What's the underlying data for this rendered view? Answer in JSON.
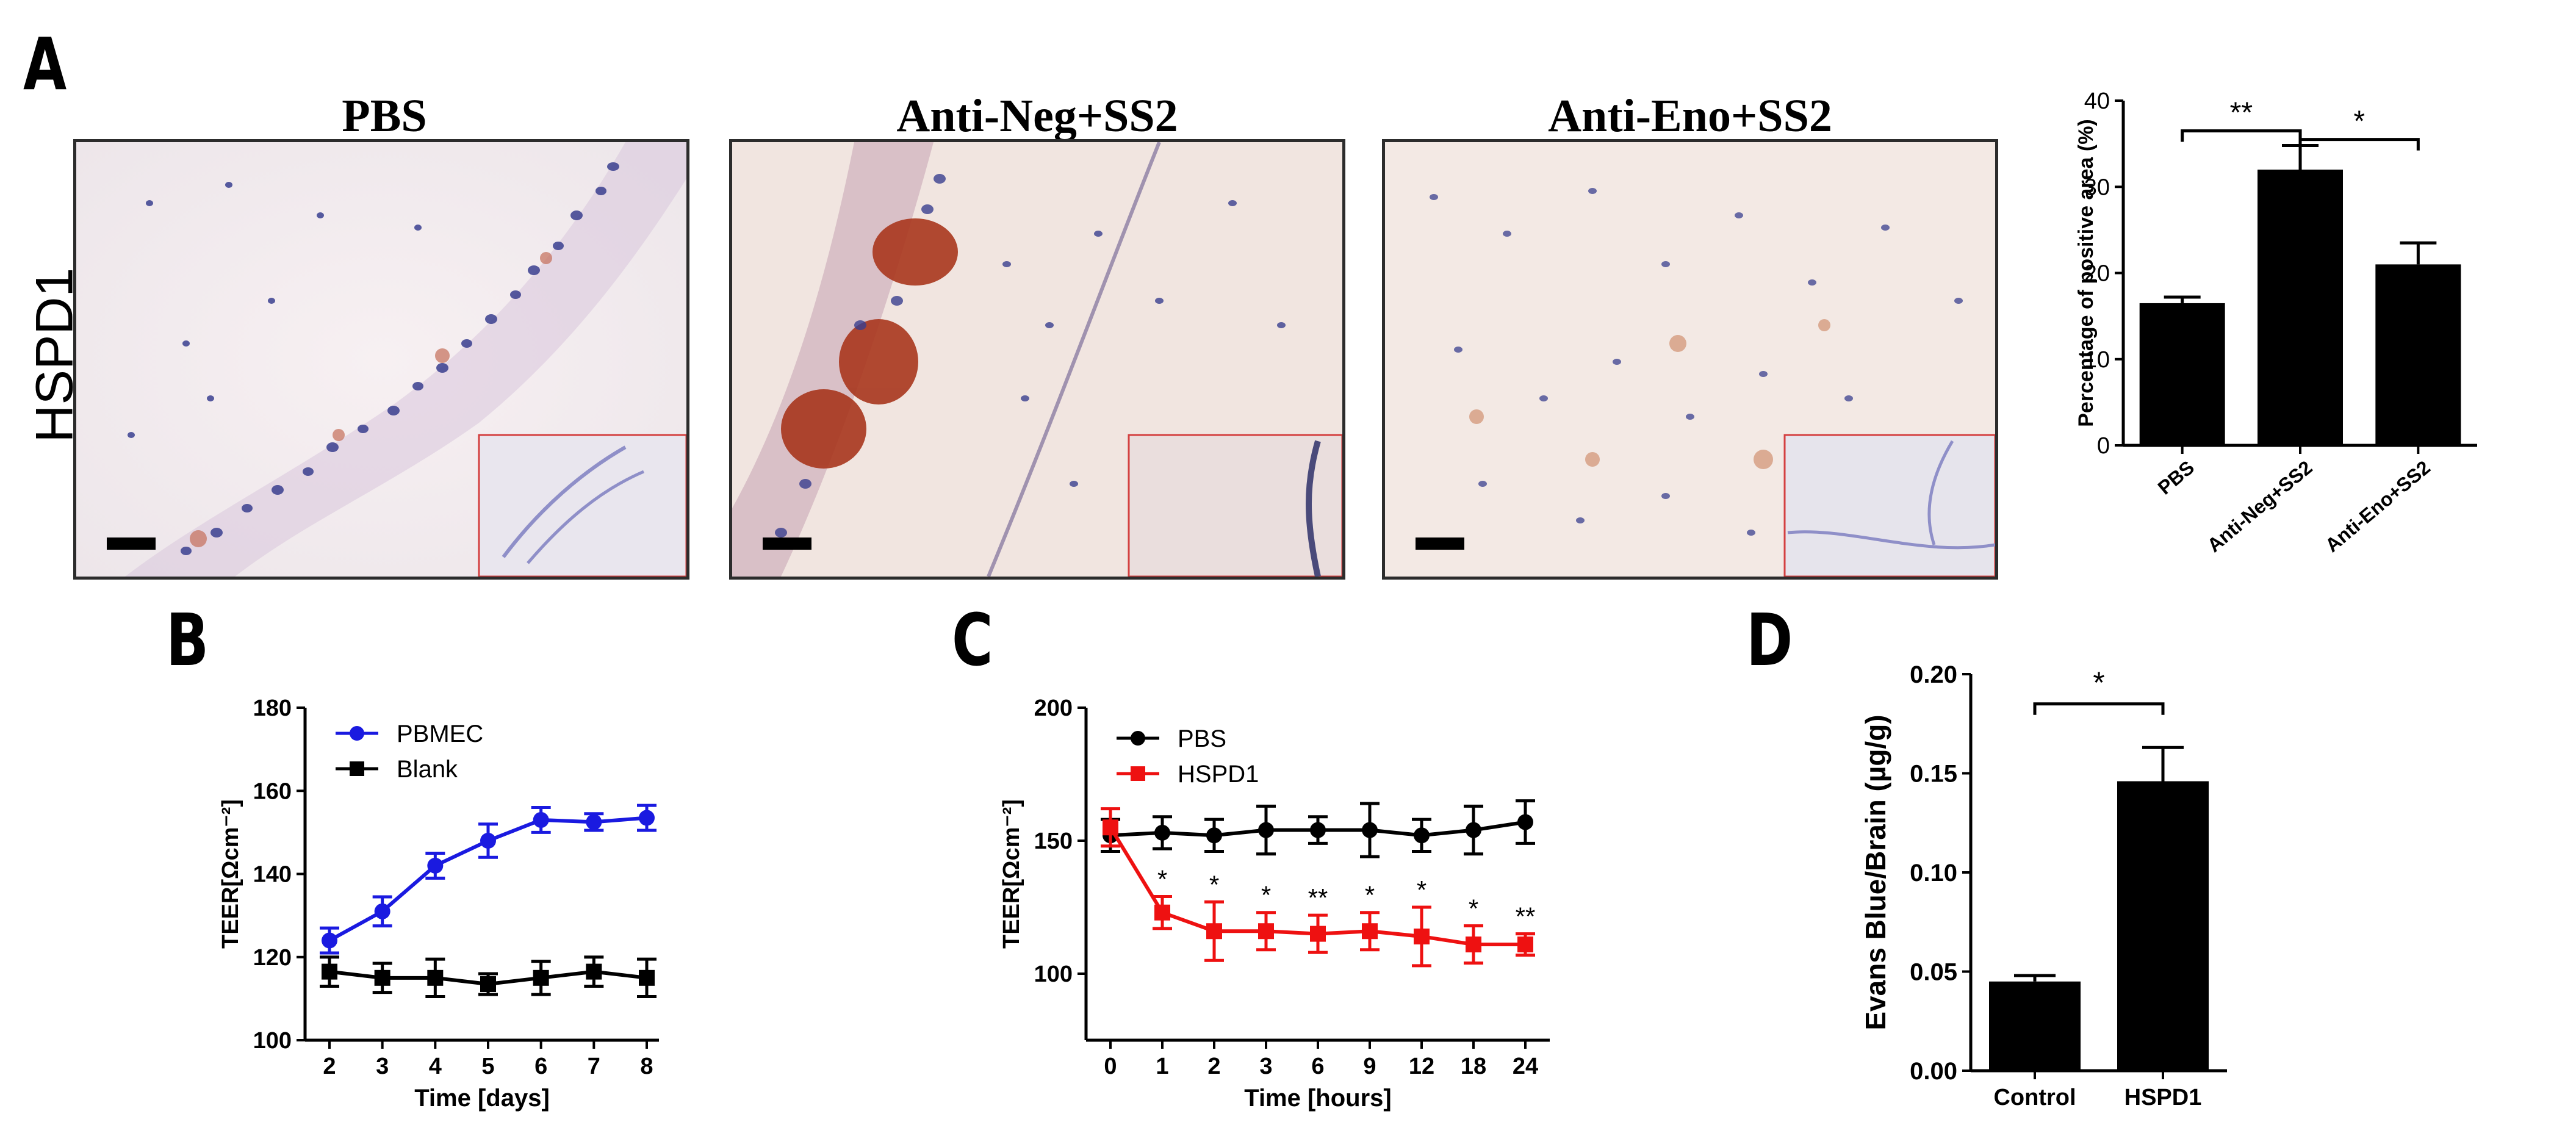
{
  "panels": {
    "A": "A",
    "B": "B",
    "C": "C",
    "D": "D",
    "row_label": "HSPD1",
    "micrographs": [
      {
        "title": "PBS"
      },
      {
        "title": "Anti-Neg+SS2"
      },
      {
        "title": "Anti-Eno+SS2"
      }
    ]
  },
  "colors": {
    "pbmec": "#1a1ae0",
    "blank": "#000000",
    "pbs": "#000000",
    "hspd1": "#ee1111",
    "bar": "#000000"
  },
  "chart_data": [
    {
      "id": "A",
      "type": "bar",
      "categories": [
        "PBS",
        "Anti-Neg+SS2",
        "Anti-Eno+SS2"
      ],
      "values": [
        16.5,
        32,
        21
      ],
      "errors": [
        0.7,
        2.8,
        2.5
      ],
      "ylabel": "Percentage of positive area (%)",
      "ylim": [
        0,
        40
      ],
      "yticks": [
        "0",
        "10",
        "20",
        "30",
        "40"
      ],
      "annotations": [
        {
          "from": 0,
          "to": 1,
          "label": "**"
        },
        {
          "from": 1,
          "to": 2,
          "label": "*"
        }
      ]
    },
    {
      "id": "B",
      "type": "line",
      "xlabel": "Time [days]",
      "ylabel": "TEER[Ωcm⁻²]",
      "x": [
        2,
        3,
        4,
        5,
        6,
        7,
        8
      ],
      "xticks": [
        "2",
        "3",
        "4",
        "5",
        "6",
        "7",
        "8"
      ],
      "ylim": [
        100,
        180
      ],
      "yticks": [
        "100",
        "120",
        "140",
        "160",
        "180"
      ],
      "series": [
        {
          "name": "PBMEC",
          "values": [
            124,
            131,
            142,
            148,
            153,
            152.5,
            153.5
          ],
          "errors": [
            3,
            3.5,
            3,
            4,
            3,
            2,
            3
          ]
        },
        {
          "name": "Blank",
          "values": [
            116.5,
            115,
            115,
            113.5,
            115,
            116.5,
            115
          ],
          "errors": [
            3.5,
            3.5,
            4.5,
            2.5,
            4,
            3.5,
            4.5
          ]
        }
      ]
    },
    {
      "id": "C",
      "type": "line",
      "xlabel": "Time [hours]",
      "ylabel": "TEER[Ωcm⁻²]",
      "x": [
        "0",
        "1",
        "2",
        "3",
        "6",
        "9",
        "12",
        "18",
        "24"
      ],
      "ylim": [
        75,
        200
      ],
      "yticks": [
        "100",
        "150",
        "200"
      ],
      "series": [
        {
          "name": "PBS",
          "values": [
            152,
            153,
            152,
            154,
            154,
            154,
            152,
            154,
            157
          ],
          "errors": [
            6,
            6,
            6,
            9,
            5,
            10,
            6,
            9,
            8
          ]
        },
        {
          "name": "HSPD1",
          "values": [
            155,
            123,
            116,
            116,
            115,
            116,
            114,
            111,
            111
          ],
          "errors": [
            7,
            6,
            11,
            7,
            7,
            7,
            11,
            7,
            4
          ]
        }
      ],
      "significance": [
        "",
        "*",
        "*",
        "*",
        "**",
        "*",
        "*",
        "*",
        "**"
      ]
    },
    {
      "id": "D",
      "type": "bar",
      "categories": [
        "Control",
        "HSPD1"
      ],
      "values": [
        0.045,
        0.146
      ],
      "errors": [
        0.003,
        0.017
      ],
      "ylabel": "Evans Blue/Brain (µg/g)",
      "ylim": [
        0,
        0.2
      ],
      "yticks": [
        "0.00",
        "0.05",
        "0.10",
        "0.15",
        "0.20"
      ],
      "annotations": [
        {
          "from": 0,
          "to": 1,
          "label": "*"
        }
      ]
    }
  ]
}
